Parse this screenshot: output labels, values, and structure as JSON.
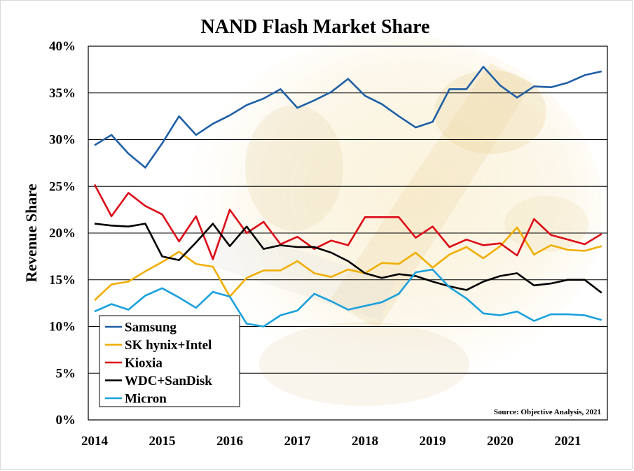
{
  "chart_data": {
    "type": "line",
    "title": "NAND Flash Market Share",
    "ylabel": "Revenue Share",
    "xlabel": "",
    "ylim": [
      0,
      40
    ],
    "yticks": [
      "0%",
      "5%",
      "10%",
      "15%",
      "20%",
      "25%",
      "30%",
      "35%",
      "40%"
    ],
    "xticks": [
      "2014",
      "2015",
      "2016",
      "2017",
      "2018",
      "2019",
      "2020",
      "2021"
    ],
    "x_start": 2014,
    "x_step": 0.25,
    "grid": "horizontal",
    "legend_position": "bottom-left",
    "source": "Source: Objective Analysis, 2021",
    "series": [
      {
        "name": "Samsung",
        "color": "#1f5fa6",
        "values": [
          29.4,
          30.5,
          28.5,
          27.0,
          29.6,
          32.5,
          30.5,
          31.7,
          32.6,
          33.7,
          34.4,
          35.4,
          33.4,
          34.2,
          35.1,
          36.5,
          34.7,
          33.8,
          32.5,
          31.3,
          31.9,
          35.4,
          35.4,
          37.8,
          35.8,
          34.5,
          35.7,
          35.6,
          36.1,
          36.9,
          37.3
        ]
      },
      {
        "name": "SK hynix+Intel",
        "color": "#f0ae00",
        "values": [
          12.8,
          14.5,
          14.8,
          15.9,
          16.9,
          18.0,
          16.7,
          16.4,
          13.2,
          15.2,
          16.0,
          16.0,
          17.0,
          15.7,
          15.3,
          16.1,
          15.7,
          16.8,
          16.7,
          17.9,
          16.3,
          17.7,
          18.5,
          17.3,
          18.6,
          20.6,
          17.7,
          18.7,
          18.2,
          18.1,
          18.6
        ]
      },
      {
        "name": "Kioxia",
        "color": "#dc0b18",
        "values": [
          25.2,
          21.8,
          24.3,
          22.9,
          22.0,
          19.1,
          21.8,
          17.2,
          22.5,
          20.0,
          21.2,
          18.8,
          19.6,
          18.3,
          19.2,
          18.7,
          21.7,
          21.7,
          21.7,
          19.5,
          20.7,
          18.5,
          19.3,
          18.7,
          18.9,
          17.6,
          21.5,
          19.8,
          19.3,
          18.8,
          19.9
        ]
      },
      {
        "name": "WDC+SanDisk",
        "color": "#000000",
        "values": [
          21.0,
          20.8,
          20.7,
          21.0,
          17.5,
          17.1,
          19.0,
          21.0,
          18.6,
          20.7,
          18.3,
          18.7,
          18.5,
          18.5,
          17.9,
          17.0,
          15.7,
          15.2,
          15.6,
          15.4,
          14.8,
          14.3,
          13.9,
          14.8,
          15.4,
          15.7,
          14.4,
          14.6,
          15.0,
          15.0,
          13.6
        ]
      },
      {
        "name": "Micron",
        "color": "#1aa0dc",
        "values": [
          11.6,
          12.4,
          11.8,
          13.3,
          14.1,
          13.1,
          12.0,
          13.7,
          13.2,
          10.3,
          10.0,
          11.2,
          11.7,
          13.5,
          12.7,
          11.8,
          12.2,
          12.6,
          13.5,
          15.8,
          16.1,
          14.2,
          13.0,
          11.4,
          11.2,
          11.6,
          10.6,
          11.3,
          11.3,
          11.2,
          10.7
        ]
      }
    ]
  }
}
